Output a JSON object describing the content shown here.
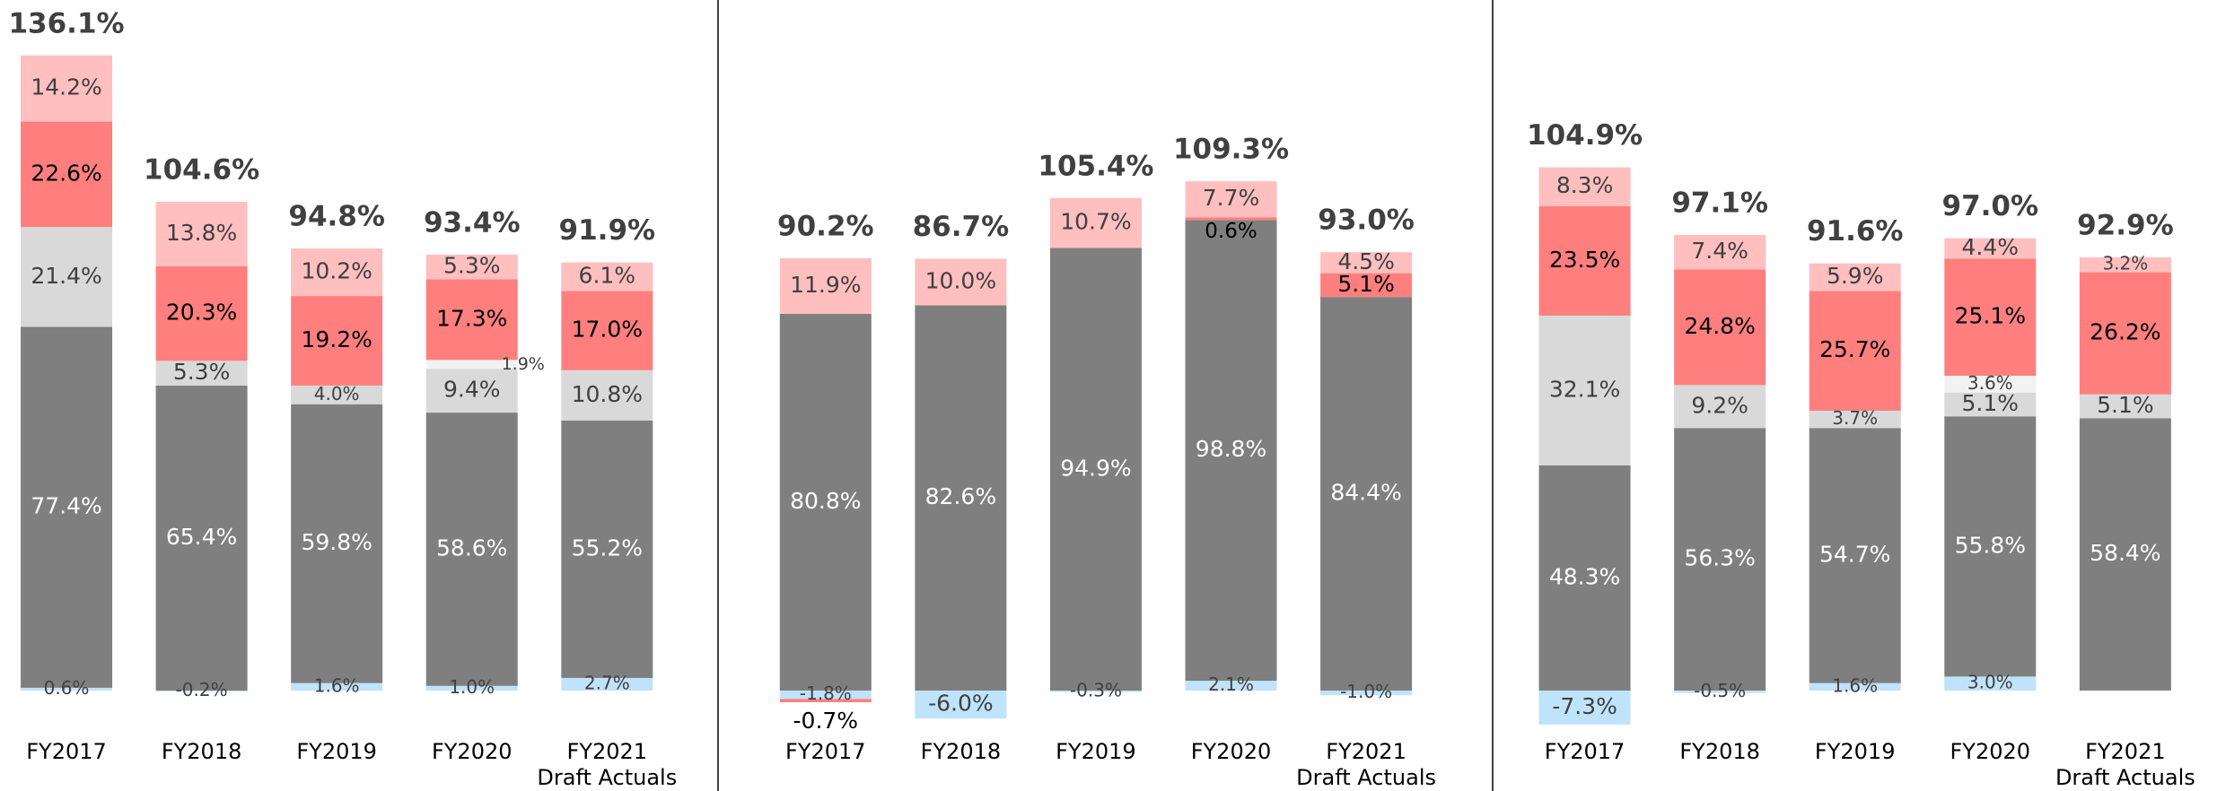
{
  "chart_data": [
    {
      "type": "bar",
      "stacked": true,
      "categories": [
        "FY2017",
        "FY2018",
        "FY2019",
        "FY2020",
        "FY2021\nDraft Actuals"
      ],
      "series": [
        {
          "color": "#bfe3fa",
          "label_color": "#404040",
          "values": [
            0.6,
            -0.2,
            1.6,
            1.0,
            2.7
          ],
          "value_labels": [
            "0.6%",
            "-0.2%",
            "1.6%",
            "1.0%",
            "2.7%"
          ]
        },
        {
          "color": "#7f7f7f",
          "label_color": "#ffffff",
          "values": [
            77.4,
            65.4,
            59.8,
            58.6,
            55.2
          ],
          "value_labels": [
            "77.4%",
            "65.4%",
            "59.8%",
            "58.6%",
            "55.2%"
          ]
        },
        {
          "color": "#d9d9d9",
          "label_color": "#404040",
          "values": [
            21.4,
            5.3,
            4.0,
            9.4,
            10.8
          ],
          "value_labels": [
            "21.4%",
            "5.3%",
            "4.0%",
            "9.4%",
            "10.8%"
          ]
        },
        {
          "color": "#f2f2f2",
          "label_color": "#404040",
          "values": [
            null,
            null,
            null,
            1.9,
            null
          ],
          "value_labels": [
            null,
            null,
            null,
            "1.9%",
            null
          ]
        },
        {
          "color": "#ff7f7f",
          "label_color": "#000000",
          "values": [
            22.6,
            20.3,
            19.2,
            17.3,
            17.0
          ],
          "value_labels": [
            "22.6%",
            "20.3%",
            "19.2%",
            "17.3%",
            "17.0%"
          ]
        },
        {
          "color": "#ffbfbf",
          "label_color": "#404040",
          "values": [
            14.2,
            13.8,
            10.2,
            5.3,
            6.1
          ],
          "value_labels": [
            "14.2%",
            "13.8%",
            "10.2%",
            "5.3%",
            "6.1%"
          ]
        }
      ],
      "totals": [
        136.1,
        104.6,
        94.8,
        93.4,
        91.9
      ],
      "total_labels": [
        "136.1%",
        "104.6%",
        "94.8%",
        "93.4%",
        "91.9%"
      ]
    },
    {
      "type": "bar",
      "stacked": true,
      "categories": [
        "FY2017",
        "FY2018",
        "FY2019",
        "FY2020",
        "FY2021\nDraft Actuals"
      ],
      "series": [
        {
          "color": "#bfe3fa",
          "label_color": "#404040",
          "values": [
            -1.8,
            -6.0,
            -0.3,
            2.1,
            -1.0
          ],
          "value_labels": [
            "-1.8%",
            "-6.0%",
            "-0.3%",
            "2.1%",
            "-1.0%"
          ]
        },
        {
          "color": "#7f7f7f",
          "label_color": "#ffffff",
          "values": [
            80.8,
            82.6,
            94.9,
            98.8,
            84.4
          ],
          "value_labels": [
            "80.8%",
            "82.6%",
            "94.9%",
            "98.8%",
            "84.4%"
          ]
        },
        {
          "color": "#ff7f7f",
          "label_color": "#000000",
          "values": [
            -0.7,
            null,
            null,
            0.6,
            5.1
          ],
          "value_labels": [
            "-0.7%",
            null,
            null,
            "0.6%",
            "5.1%"
          ]
        },
        {
          "color": "#ffbfbf",
          "label_color": "#404040",
          "values": [
            11.9,
            10.0,
            10.7,
            7.7,
            4.5
          ],
          "value_labels": [
            "11.9%",
            "10.0%",
            "10.7%",
            "7.7%",
            "4.5%"
          ]
        }
      ],
      "totals": [
        90.2,
        86.7,
        105.4,
        109.3,
        93.0
      ],
      "total_labels": [
        "90.2%",
        "86.7%",
        "105.4%",
        "109.3%",
        "93.0%"
      ]
    },
    {
      "type": "bar",
      "stacked": true,
      "categories": [
        "FY2017",
        "FY2018",
        "FY2019",
        "FY2020",
        "FY2021\nDraft Actuals"
      ],
      "series": [
        {
          "color": "#bfe3fa",
          "label_color": "#404040",
          "values": [
            -7.3,
            -0.5,
            1.6,
            3.0,
            null
          ],
          "value_labels": [
            "-7.3%",
            "-0.5%",
            "1.6%",
            "3.0%",
            null
          ]
        },
        {
          "color": "#7f7f7f",
          "label_color": "#ffffff",
          "values": [
            48.3,
            56.3,
            54.7,
            55.8,
            58.4
          ],
          "value_labels": [
            "48.3%",
            "56.3%",
            "54.7%",
            "55.8%",
            "58.4%"
          ]
        },
        {
          "color": "#d9d9d9",
          "label_color": "#404040",
          "values": [
            32.1,
            9.2,
            3.7,
            5.1,
            5.1
          ],
          "value_labels": [
            "32.1%",
            "9.2%",
            "3.7%",
            "5.1%",
            "5.1%"
          ]
        },
        {
          "color": "#f2f2f2",
          "label_color": "#404040",
          "values": [
            null,
            null,
            null,
            3.6,
            null
          ],
          "value_labels": [
            null,
            null,
            null,
            "3.6%",
            null
          ]
        },
        {
          "color": "#ff7f7f",
          "label_color": "#000000",
          "values": [
            23.5,
            24.8,
            25.7,
            25.1,
            26.2
          ],
          "value_labels": [
            "23.5%",
            "24.8%",
            "25.7%",
            "25.1%",
            "26.2%"
          ]
        },
        {
          "color": "#ffbfbf",
          "label_color": "#404040",
          "values": [
            8.3,
            7.4,
            5.9,
            4.4,
            3.2
          ],
          "value_labels": [
            "8.3%",
            "7.4%",
            "5.9%",
            "4.4%",
            "3.2%"
          ]
        }
      ],
      "totals": [
        104.9,
        97.1,
        91.6,
        97.0,
        92.9
      ],
      "total_labels": [
        "104.9%",
        "97.1%",
        "91.6%",
        "97.0%",
        "92.9%"
      ]
    }
  ]
}
